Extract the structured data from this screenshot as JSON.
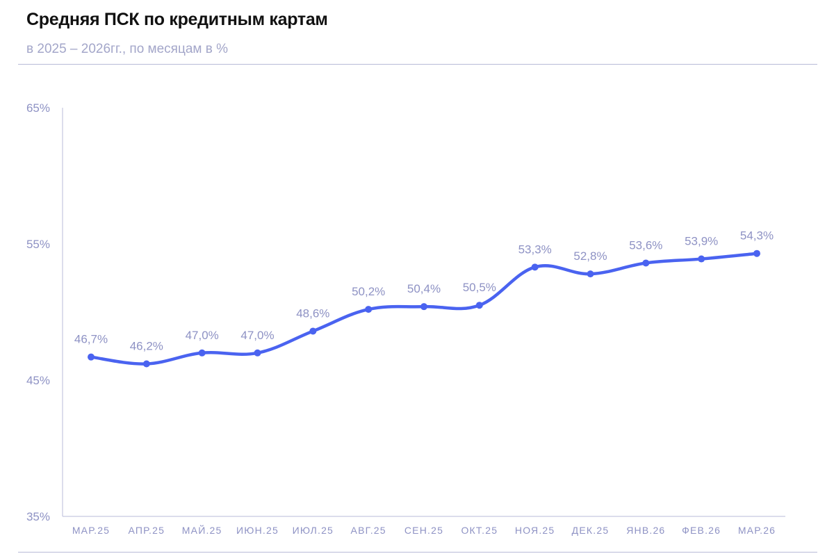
{
  "header": {
    "title": "Средняя ПСК по кредитным картам",
    "subtitle": "в 2025 – 2026гг., по месяцам в %"
  },
  "chart_data": {
    "type": "line",
    "title": "Средняя ПСК по кредитным картам",
    "subtitle": "в 2025 – 2026гг., по месяцам в %",
    "categories": [
      "МАР.25",
      "АПР.25",
      "МАЙ.25",
      "ИЮН.25",
      "ИЮЛ.25",
      "АВГ.25",
      "СЕН.25",
      "ОКТ.25",
      "НОЯ.25",
      "ДЕК.25",
      "ЯНВ.26",
      "ФЕВ.26",
      "МАР.26"
    ],
    "values": [
      46.7,
      46.2,
      47.0,
      47.0,
      48.6,
      50.2,
      50.4,
      50.5,
      53.3,
      52.8,
      53.6,
      53.9,
      54.3
    ],
    "data_labels": [
      "46,7%",
      "46,2%",
      "47,0%",
      "47,0%",
      "48,6%",
      "50,2%",
      "50,4%",
      "50,5%",
      "53,3%",
      "52,8%",
      "53,6%",
      "53,9%",
      "54,3%"
    ],
    "y_ticks": [
      35,
      45,
      55,
      65
    ],
    "y_tick_labels": [
      "35%",
      "45%",
      "55%",
      "65%"
    ],
    "ylim": [
      35,
      65
    ],
    "grid": false,
    "legend": "none",
    "line_color": "#4a63f0",
    "text_color": "#8e92c4",
    "axis_color": "#b8bbd8"
  }
}
